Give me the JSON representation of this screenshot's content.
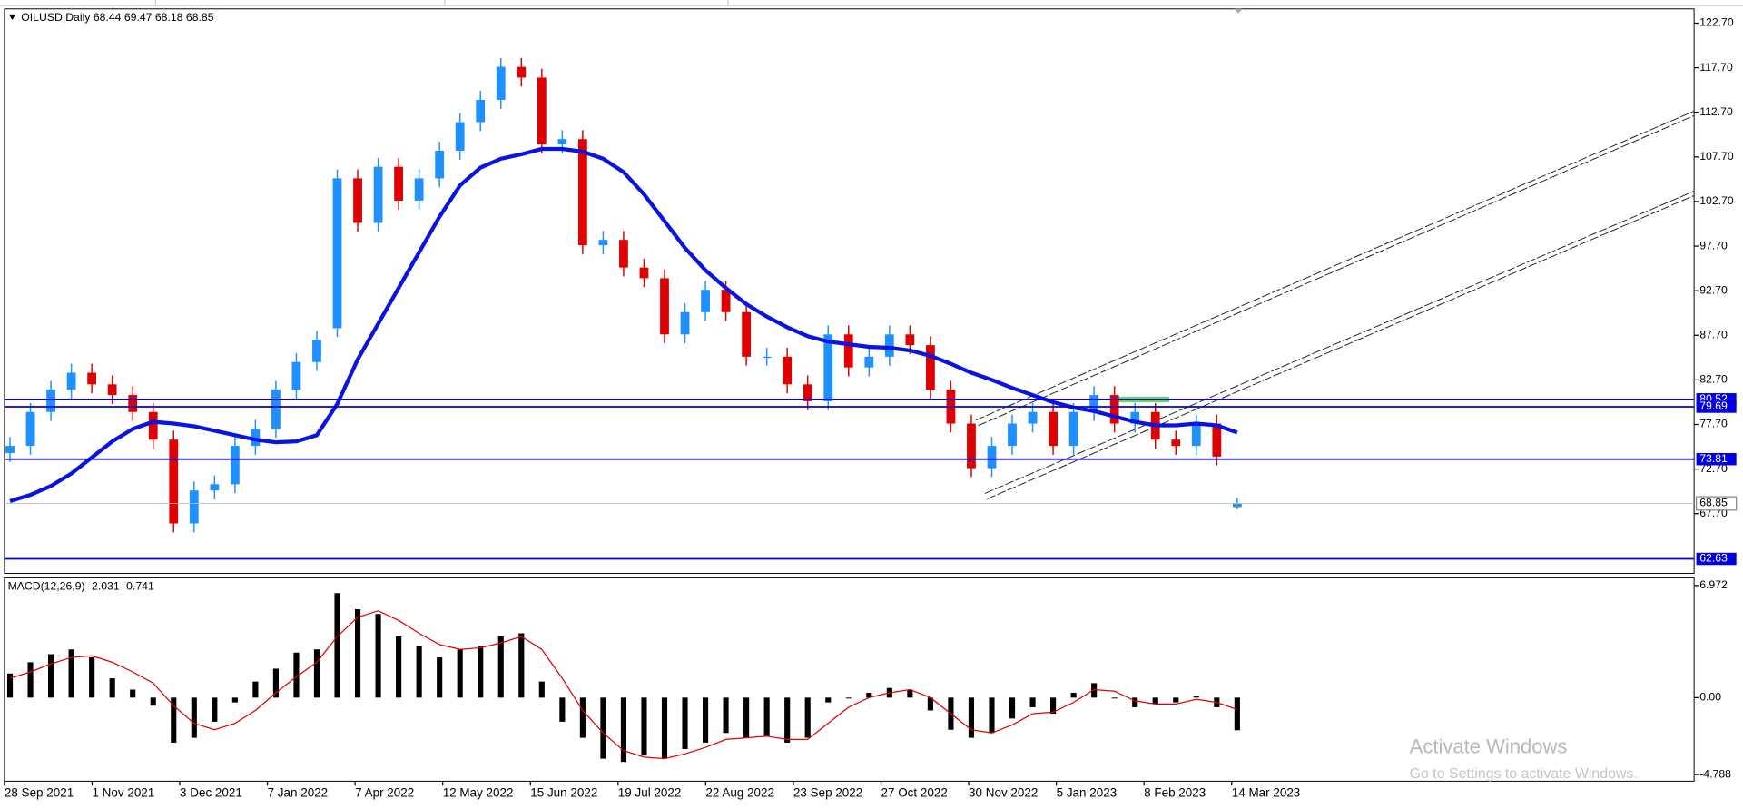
{
  "chart_data": [
    {
      "type": "candlestick",
      "title": "OILUSD,Daily 68.44 69.47 68.18 68.85",
      "open": [
        74.5,
        75.3,
        79.1,
        81.6,
        83.5,
        82.2,
        81.0,
        79.1,
        76.0,
        66.6,
        70.3,
        71.0,
        75.3,
        77.2,
        81.6,
        84.7,
        88.5,
        105.3,
        100.3,
        106.6,
        102.8,
        105.3,
        108.4,
        111.6,
        114.1,
        117.8,
        116.6,
        109.1,
        109.7,
        97.8,
        98.4,
        95.3,
        94.1,
        87.8,
        90.3,
        92.8,
        90.3,
        85.3,
        85.3,
        82.2,
        80.3,
        87.8,
        84.1,
        85.3,
        87.8,
        86.6,
        81.6,
        77.8,
        72.8,
        75.3,
        77.8,
        79.1,
        75.3,
        79.1,
        81.0,
        77.8,
        79.1,
        76.0,
        75.3,
        77.8,
        68.44
      ],
      "high": [
        76.3,
        80.1,
        82.6,
        84.5,
        84.5,
        83.2,
        82.0,
        80.1,
        77.0,
        71.3,
        72.0,
        76.3,
        78.2,
        82.6,
        85.7,
        88.2,
        106.3,
        106.3,
        107.6,
        107.6,
        106.3,
        109.4,
        112.6,
        115.1,
        118.8,
        118.8,
        117.6,
        110.7,
        110.7,
        99.4,
        99.4,
        96.3,
        95.1,
        91.3,
        93.8,
        93.8,
        91.3,
        86.3,
        86.3,
        83.2,
        88.8,
        88.8,
        86.3,
        88.8,
        88.8,
        87.6,
        82.6,
        78.8,
        76.3,
        78.8,
        80.1,
        80.1,
        80.1,
        82.0,
        82.0,
        80.1,
        80.1,
        77.0,
        78.8,
        78.8,
        69.47
      ],
      "low": [
        73.5,
        74.3,
        78.1,
        80.6,
        81.2,
        80.0,
        78.1,
        75.0,
        65.6,
        65.6,
        69.3,
        70.0,
        74.3,
        76.2,
        80.6,
        83.7,
        87.5,
        99.3,
        99.3,
        101.8,
        101.8,
        104.3,
        107.4,
        110.6,
        113.1,
        115.6,
        108.1,
        108.1,
        96.8,
        96.8,
        94.3,
        93.1,
        86.8,
        86.8,
        89.3,
        89.3,
        84.3,
        84.3,
        81.2,
        79.3,
        79.3,
        83.1,
        83.1,
        84.3,
        85.6,
        80.6,
        76.8,
        71.8,
        71.8,
        74.3,
        76.8,
        74.3,
        74.3,
        78.1,
        76.8,
        76.8,
        75.0,
        74.3,
        74.3,
        73.1,
        68.18
      ],
      "close": [
        75.3,
        79.1,
        81.6,
        83.5,
        82.2,
        81.0,
        79.1,
        76.0,
        66.6,
        70.3,
        71.0,
        75.3,
        77.2,
        81.6,
        84.7,
        87.2,
        105.3,
        100.3,
        106.6,
        102.8,
        105.3,
        108.4,
        111.6,
        114.1,
        117.8,
        116.6,
        109.1,
        109.7,
        97.8,
        98.4,
        95.3,
        94.1,
        87.8,
        90.3,
        92.8,
        90.3,
        85.3,
        85.3,
        82.2,
        80.3,
        87.8,
        84.1,
        85.3,
        87.8,
        86.6,
        81.6,
        77.8,
        72.8,
        75.3,
        77.8,
        79.1,
        75.3,
        79.1,
        81.0,
        77.8,
        79.1,
        76.0,
        75.3,
        77.8,
        74.1,
        68.85
      ],
      "up_color": "#1e90ff",
      "down_color": "#e00000",
      "moving_average": {
        "color": "#0a14e0",
        "values": [
          69.1,
          69.8,
          70.8,
          72.2,
          74,
          75.8,
          77.2,
          78,
          77.8,
          77.5,
          77,
          76.5,
          76,
          75.7,
          75.8,
          76.5,
          80,
          85,
          89,
          93,
          97,
          101,
          104.5,
          106.5,
          107.5,
          108,
          108.6,
          108.6,
          108.3,
          107.5,
          106,
          103.5,
          100.5,
          97.5,
          95,
          93,
          91.2,
          89.8,
          88.6,
          87.6,
          87,
          86.7,
          86.4,
          86.3,
          86,
          85.4,
          84.5,
          83.5,
          82.7,
          81.8,
          81,
          80.2,
          79.6,
          79.2,
          78.6,
          78,
          77.6,
          77.6,
          77.8,
          77.6,
          76.8
        ]
      },
      "levels": [
        {
          "value": 80.52,
          "color": "#0000e0"
        },
        {
          "value": 79.69,
          "color": "#0000e0"
        },
        {
          "value": 73.81,
          "color": "#0000e0"
        },
        {
          "value": 62.63,
          "color": "#0000e0"
        }
      ],
      "current_price": 68.85,
      "ylim": [
        61.0,
        124.3
      ],
      "yticks": [
        {
          "value": 122.7,
          "label": "122.70"
        },
        {
          "value": 117.7,
          "label": "117.70"
        },
        {
          "value": 112.7,
          "label": "112.70"
        },
        {
          "value": 107.7,
          "label": "107.70"
        },
        {
          "value": 102.7,
          "label": "102.70"
        },
        {
          "value": 97.7,
          "label": "97.70"
        },
        {
          "value": 92.7,
          "label": "92.70"
        },
        {
          "value": 87.7,
          "label": "87.70"
        },
        {
          "value": 82.7,
          "label": "82.70"
        },
        {
          "value": 77.7,
          "label": "77.70"
        },
        {
          "value": 72.7,
          "label": "72.70"
        },
        {
          "value": 67.7,
          "label": "67.70"
        }
      ],
      "x_labels": [
        "28 Sep 2021",
        "1 Nov 2021",
        "3 Dec 2021",
        "7 Jan 2022",
        "7 Apr 2022",
        "12 May 2022",
        "15 Jun 2022",
        "19 Jul 2022",
        "22 Aug 2022",
        "23 Sep 2022",
        "27 Oct 2022",
        "30 Nov 2022",
        "5 Jan 2023",
        "8 Feb 2023",
        "14 Mar 2023"
      ]
    },
    {
      "type": "macd",
      "title": "MACD(12,26,9) -2.031 -0.741",
      "series": [
        {
          "name": "MACD",
          "color": "#000000",
          "values": [
            1.5,
            2.2,
            2.7,
            3.0,
            2.5,
            1.2,
            0.5,
            -0.5,
            -2.8,
            -2.5,
            -1.5,
            -0.3,
            1.0,
            1.8,
            2.8,
            3.0,
            6.5,
            5.5,
            5.2,
            3.8,
            3.2,
            2.5,
            3.0,
            3.2,
            3.8,
            4.0,
            1.0,
            -1.5,
            -2.5,
            -3.8,
            -4.0,
            -3.6,
            -3.8,
            -3.2,
            -2.8,
            -2.2,
            -2.5,
            -2.4,
            -2.8,
            -2.5,
            -0.3,
            0.0,
            0.3,
            0.6,
            0.5,
            -0.8,
            -2.0,
            -2.5,
            -2.2,
            -1.3,
            -0.6,
            -1.0,
            0.3,
            0.9,
            0.0,
            -0.6,
            -0.4,
            -0.3,
            0.1,
            -0.6,
            -2.031
          ]
        },
        {
          "name": "Signal",
          "color": "#e00000",
          "values": [
            1.2,
            1.6,
            2.1,
            2.5,
            2.6,
            2.2,
            1.6,
            0.9,
            -0.5,
            -1.6,
            -2.0,
            -1.6,
            -0.8,
            0.3,
            1.3,
            2.2,
            3.8,
            5.0,
            5.4,
            4.8,
            4.0,
            3.3,
            3.0,
            3.1,
            3.4,
            3.8,
            3.0,
            1.2,
            -0.8,
            -2.2,
            -3.3,
            -3.7,
            -3.8,
            -3.5,
            -3.1,
            -2.6,
            -2.5,
            -2.4,
            -2.6,
            -2.6,
            -1.6,
            -0.6,
            0.0,
            0.3,
            0.5,
            0.0,
            -1.0,
            -2.0,
            -2.2,
            -1.7,
            -1.0,
            -0.9,
            -0.3,
            0.5,
            0.4,
            -0.2,
            -0.4,
            -0.4,
            -0.1,
            -0.3,
            -0.741
          ]
        }
      ],
      "ylim": [
        -5.2,
        7.45
      ],
      "yticks": [
        6.972,
        {
          "value": 0,
          "label": "0.00"
        },
        -4.788
      ]
    }
  ],
  "overlay": {
    "line1": "Activate Windows",
    "line2": "Go to Settings to activate Windows."
  }
}
